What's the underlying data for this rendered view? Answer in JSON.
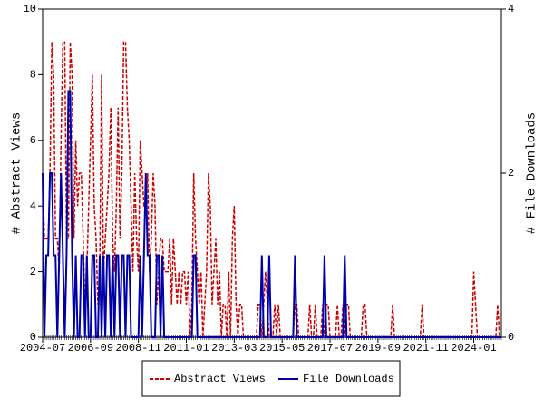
{
  "chart_data": {
    "type": "line",
    "y_label": "# Abstract Views",
    "y2_label": "# File Downloads",
    "x": [
      "2004-07",
      "2004-08",
      "2004-09",
      "2004-10",
      "2004-11",
      "2004-12",
      "2005-01",
      "2005-02",
      "2005-03",
      "2005-04",
      "2005-05",
      "2005-06",
      "2005-07",
      "2005-08",
      "2005-09",
      "2005-10",
      "2005-11",
      "2005-12",
      "2006-01",
      "2006-02",
      "2006-03",
      "2006-04",
      "2006-05",
      "2006-06",
      "2006-07",
      "2006-08",
      "2006-09",
      "2006-10",
      "2006-11",
      "2006-12",
      "2007-01",
      "2007-02",
      "2007-03",
      "2007-04",
      "2007-05",
      "2007-06",
      "2007-07",
      "2007-08",
      "2007-09",
      "2007-10",
      "2007-11",
      "2007-12",
      "2008-01",
      "2008-02",
      "2008-03",
      "2008-04",
      "2008-05",
      "2008-06",
      "2008-07",
      "2008-08",
      "2008-09",
      "2008-10",
      "2008-11",
      "2008-12",
      "2009-01",
      "2009-02",
      "2009-03",
      "2009-04",
      "2009-05",
      "2009-06",
      "2009-07",
      "2009-08",
      "2009-09",
      "2009-10",
      "2009-11",
      "2009-12",
      "2010-01",
      "2010-02",
      "2010-03",
      "2010-04",
      "2010-05",
      "2010-06",
      "2010-07",
      "2010-08",
      "2010-09",
      "2010-10",
      "2010-11",
      "2010-12",
      "2011-01",
      "2011-02",
      "2011-03",
      "2011-04",
      "2011-05",
      "2011-06",
      "2011-07",
      "2011-08",
      "2011-09",
      "2011-10",
      "2011-11",
      "2011-12",
      "2012-01",
      "2012-02",
      "2012-03",
      "2012-04",
      "2012-05",
      "2012-06",
      "2012-07",
      "2012-08",
      "2012-09",
      "2012-10",
      "2012-11",
      "2012-12",
      "2013-01",
      "2013-02",
      "2013-03",
      "2013-04",
      "2013-05",
      "2013-06",
      "2013-07",
      "2013-08",
      "2013-09",
      "2013-10",
      "2013-11",
      "2013-12",
      "2014-01",
      "2014-02",
      "2014-03",
      "2014-04",
      "2014-05",
      "2014-06",
      "2014-07",
      "2014-08",
      "2014-09",
      "2014-10",
      "2014-11",
      "2014-12",
      "2015-01",
      "2015-02",
      "2015-03",
      "2015-04",
      "2015-05",
      "2015-06",
      "2015-07",
      "2015-08",
      "2015-09",
      "2015-10",
      "2015-11",
      "2015-12",
      "2016-01",
      "2016-02",
      "2016-03",
      "2016-04",
      "2016-05",
      "2016-06",
      "2016-07",
      "2016-08",
      "2016-09",
      "2016-10",
      "2016-11",
      "2016-12",
      "2017-01",
      "2017-02",
      "2017-03",
      "2017-04",
      "2017-05",
      "2017-06",
      "2017-07",
      "2017-08",
      "2017-09",
      "2017-10",
      "2017-11",
      "2017-12",
      "2018-01",
      "2018-02",
      "2018-03",
      "2018-04",
      "2018-05",
      "2018-06",
      "2018-07",
      "2018-08",
      "2018-09",
      "2018-10",
      "2018-11",
      "2018-12",
      "2019-01",
      "2019-02",
      "2019-03",
      "2019-04",
      "2019-05",
      "2019-06",
      "2019-07",
      "2019-08",
      "2019-09",
      "2019-10",
      "2019-11",
      "2019-12",
      "2020-01",
      "2020-02",
      "2020-03",
      "2020-04",
      "2020-05",
      "2020-06",
      "2020-07",
      "2020-08",
      "2020-09",
      "2020-10",
      "2020-11",
      "2020-12",
      "2021-01",
      "2021-02",
      "2021-03",
      "2021-04",
      "2021-05",
      "2021-06",
      "2021-07",
      "2021-08",
      "2021-09",
      "2021-10",
      "2021-11",
      "2021-12",
      "2022-01",
      "2022-02",
      "2022-03",
      "2022-04",
      "2022-05",
      "2022-06",
      "2022-07",
      "2022-08",
      "2022-09",
      "2022-10",
      "2022-11",
      "2022-12",
      "2023-01",
      "2023-02",
      "2023-03",
      "2023-04",
      "2023-05",
      "2023-06",
      "2023-07",
      "2023-08",
      "2023-09",
      "2023-10",
      "2023-11",
      "2023-12",
      "2024-01",
      "2024-02",
      "2024-03",
      "2024-04",
      "2024-05",
      "2024-06",
      "2024-07",
      "2024-08",
      "2024-09",
      "2024-10",
      "2024-11",
      "2024-12",
      "2025-01",
      "2025-02",
      "2025-03",
      "2025-04"
    ],
    "xticks": [
      "2004-07",
      "2006-09",
      "2008-11",
      "2011-01",
      "2013-03",
      "2015-05",
      "2017-07",
      "2019-09",
      "2021-11",
      "2024-01"
    ],
    "ylim": [
      0,
      10
    ],
    "yticks": [
      0,
      2,
      4,
      6,
      8,
      10
    ],
    "y2lim": [
      0,
      4
    ],
    "y2ticks": [
      0,
      2,
      4
    ],
    "series": [
      {
        "name": "Abstract Views",
        "color": "#cc0000",
        "values": [
          5,
          3,
          3,
          3,
          5,
          9,
          8,
          3,
          3,
          2,
          6,
          9,
          9,
          3,
          3,
          9,
          8,
          3,
          6,
          4,
          5,
          5,
          3,
          1,
          2,
          4,
          6,
          8,
          4,
          3,
          1,
          2,
          8,
          2,
          3,
          4,
          5,
          7,
          3,
          2,
          4,
          7,
          3,
          5,
          9,
          9,
          7,
          6,
          4,
          2,
          5,
          3,
          2,
          6,
          5,
          4,
          4,
          5,
          2,
          3,
          5,
          4,
          1,
          2,
          3,
          3,
          2,
          2,
          2,
          3,
          1,
          3,
          2,
          1,
          2,
          1,
          2,
          2,
          1,
          2,
          0,
          1,
          5,
          3,
          2,
          1,
          2,
          0,
          1,
          2,
          5,
          4,
          1,
          2,
          3,
          1,
          2,
          0,
          1,
          1,
          0,
          2,
          0,
          3,
          4,
          1,
          0,
          1,
          1,
          0,
          0,
          0,
          0,
          0,
          0,
          0,
          0,
          1,
          1,
          0,
          1,
          2,
          1,
          0,
          0,
          0,
          1,
          0,
          1,
          0,
          0,
          0,
          0,
          0,
          0,
          0,
          0,
          1,
          1,
          0,
          0,
          0,
          0,
          0,
          0,
          1,
          0,
          0,
          1,
          0,
          0,
          0,
          1,
          0,
          1,
          1,
          0,
          0,
          0,
          0,
          1,
          0,
          0,
          1,
          0,
          1,
          1,
          0,
          0,
          0,
          0,
          0,
          0,
          0,
          1,
          1,
          0,
          0,
          0,
          0,
          0,
          0,
          0,
          0,
          0,
          0,
          0,
          0,
          0,
          0,
          1,
          0,
          0,
          0,
          0,
          0,
          0,
          0,
          0,
          0,
          0,
          0,
          0,
          0,
          0,
          0,
          1,
          0,
          0,
          0,
          0,
          0,
          0,
          0,
          0,
          0,
          0,
          0,
          0,
          0,
          0,
          0,
          0,
          0,
          0,
          0,
          0,
          0,
          0,
          0,
          0,
          0,
          0,
          0,
          2,
          1,
          0,
          0,
          0,
          0,
          0,
          0,
          0,
          0,
          0,
          0,
          0,
          1,
          0,
          0
        ]
      },
      {
        "name": "File Downloads",
        "color": "#0000aa",
        "axis": "y2",
        "values": [
          2,
          0,
          1,
          1,
          2,
          2,
          1,
          1,
          0,
          1,
          2,
          1,
          0,
          1,
          3,
          3,
          1,
          0,
          1,
          0,
          0,
          1,
          1,
          0,
          1,
          0,
          0,
          1,
          1,
          0,
          0,
          1,
          0,
          1,
          0,
          1,
          1,
          0,
          1,
          0,
          1,
          1,
          0,
          1,
          1,
          0,
          1,
          1,
          0,
          0,
          0,
          0,
          0,
          1,
          0,
          1,
          2,
          1,
          1,
          0,
          0,
          0,
          1,
          1,
          0,
          1,
          0,
          0,
          0,
          0,
          0,
          0,
          0,
          0,
          0,
          0,
          0,
          0,
          0,
          0,
          0,
          0,
          1,
          1,
          0,
          0,
          0,
          0,
          0,
          0,
          0,
          0,
          0,
          0,
          0,
          0,
          0,
          0,
          0,
          0,
          0,
          0,
          0,
          0,
          0,
          0,
          0,
          0,
          0,
          0,
          0,
          0,
          0,
          0,
          0,
          0,
          0,
          0,
          0,
          1,
          0,
          0,
          0,
          1,
          0,
          0,
          0,
          0,
          0,
          0,
          0,
          0,
          0,
          0,
          0,
          0,
          0,
          1,
          0,
          0,
          0,
          0,
          0,
          0,
          0,
          0,
          0,
          0,
          0,
          0,
          0,
          0,
          0,
          1,
          0,
          0,
          0,
          0,
          0,
          0,
          0,
          0,
          0,
          0,
          1,
          0,
          0,
          0,
          0,
          0,
          0,
          0,
          0,
          0,
          0,
          0,
          0,
          0,
          0,
          0,
          0,
          0,
          0,
          0,
          0,
          0,
          0,
          0,
          0,
          0,
          0,
          0,
          0,
          0,
          0,
          0,
          0,
          0,
          0,
          0,
          0,
          0,
          0,
          0,
          0,
          0,
          0,
          0,
          0,
          0,
          0,
          0,
          0,
          0,
          0,
          0,
          0,
          0,
          0,
          0,
          0,
          0,
          0,
          0,
          0,
          0,
          0,
          0,
          0,
          0,
          0,
          0,
          0,
          0,
          0,
          0,
          0,
          0,
          0,
          0,
          0,
          0,
          0,
          0,
          0,
          0,
          0,
          0,
          0,
          0
        ]
      }
    ]
  }
}
